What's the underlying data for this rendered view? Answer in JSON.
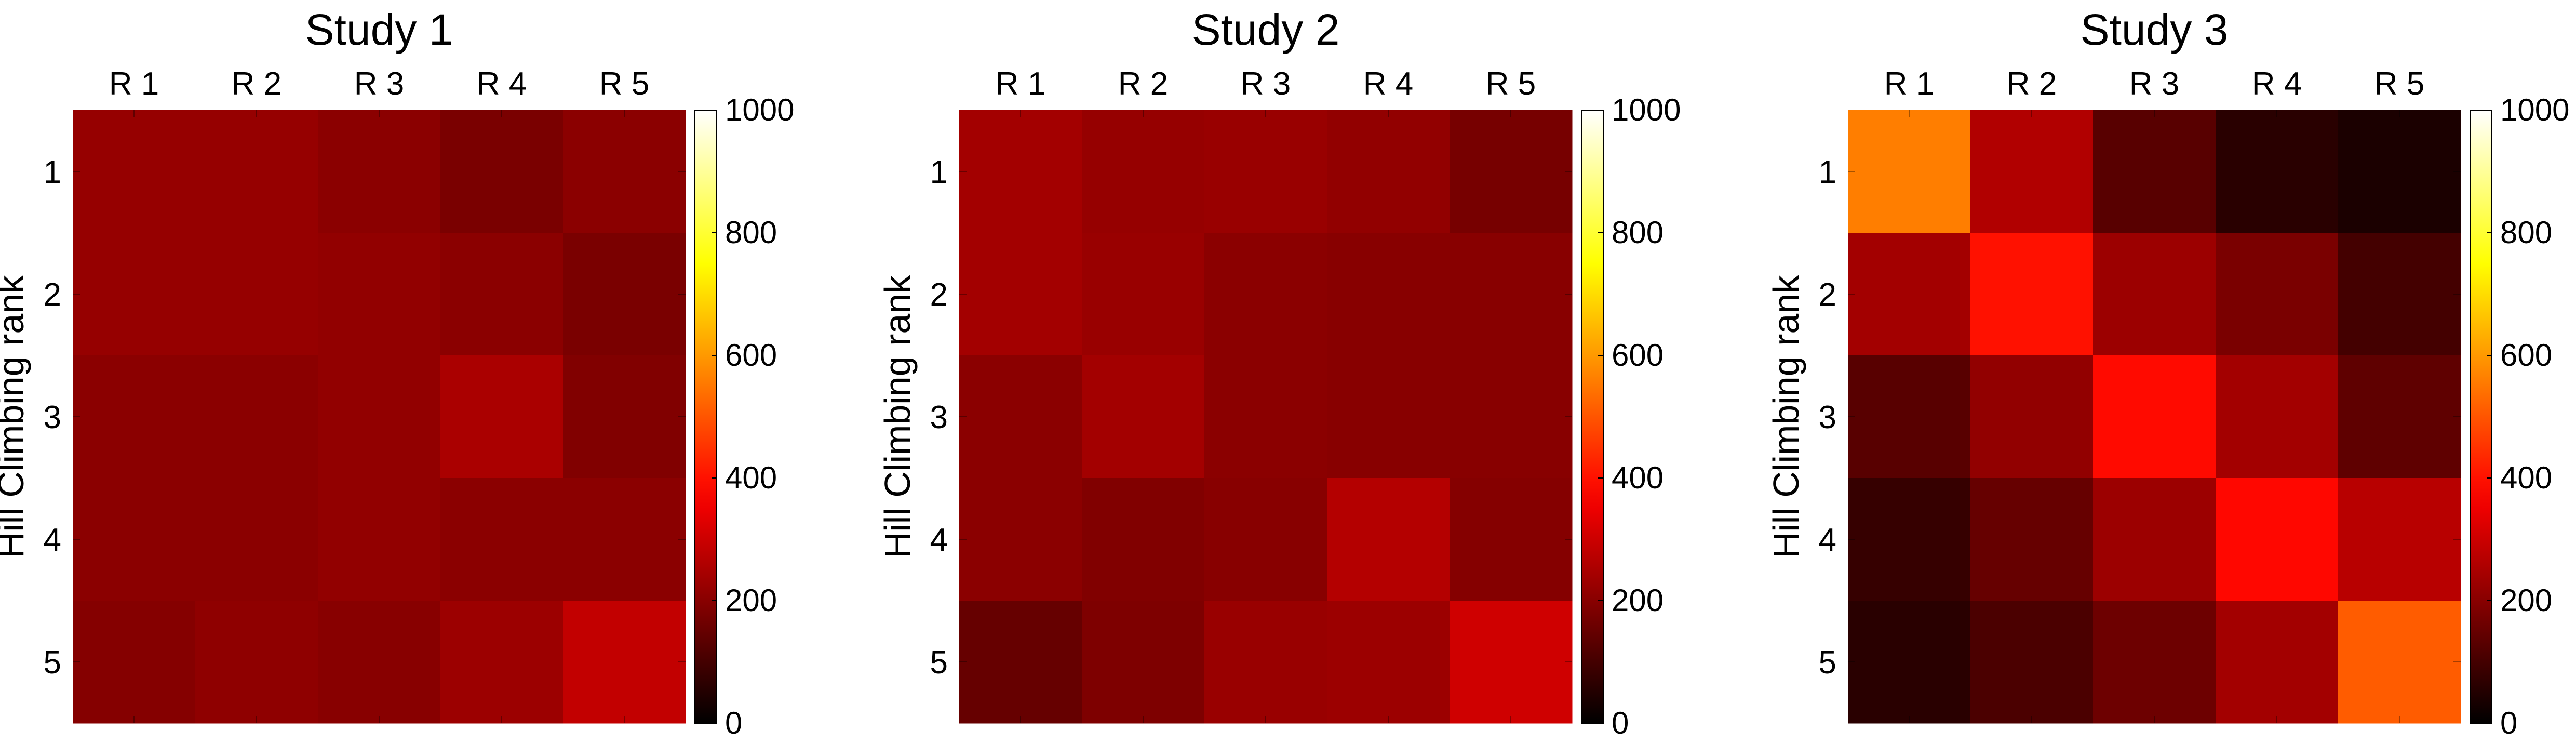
{
  "colormap": "hot",
  "colors": {
    "background": "#ffffff",
    "axis": "#000000"
  },
  "chart_data": [
    {
      "type": "heatmap",
      "title": "Study 1",
      "x_categories": [
        "R 1",
        "R 2",
        "R 3",
        "R 4",
        "R 5"
      ],
      "y_categories": [
        "1",
        "2",
        "3",
        "4",
        "5"
      ],
      "ylabel": "Hill Climbing rank",
      "xlabel": "",
      "colorbar": {
        "range": [
          0,
          1000
        ],
        "ticks": [
          "0",
          "200",
          "400",
          "600",
          "800",
          "1000"
        ]
      },
      "values": [
        [
          220,
          220,
          205,
          180,
          205
        ],
        [
          220,
          220,
          215,
          205,
          180
        ],
        [
          205,
          205,
          215,
          250,
          190
        ],
        [
          205,
          205,
          215,
          205,
          205
        ],
        [
          195,
          210,
          200,
          230,
          285
        ]
      ]
    },
    {
      "type": "heatmap",
      "title": "Study 2",
      "x_categories": [
        "R 1",
        "R 2",
        "R 3",
        "R 4",
        "R 5"
      ],
      "y_categories": [
        "1",
        "2",
        "3",
        "4",
        "5"
      ],
      "ylabel": "Hill Climbing rank",
      "xlabel": "",
      "colorbar": {
        "range": [
          0,
          1000
        ],
        "ticks": [
          "0",
          "200",
          "400",
          "600",
          "800",
          "1000"
        ]
      },
      "values": [
        [
          240,
          220,
          225,
          215,
          175
        ],
        [
          240,
          225,
          205,
          200,
          200
        ],
        [
          205,
          240,
          205,
          200,
          200
        ],
        [
          205,
          190,
          200,
          265,
          195
        ],
        [
          150,
          185,
          225,
          230,
          305
        ]
      ]
    },
    {
      "type": "heatmap",
      "title": "Study 3",
      "x_categories": [
        "R 1",
        "R 2",
        "R 3",
        "R 4",
        "R 5"
      ],
      "y_categories": [
        "1",
        "2",
        "3",
        "4",
        "5"
      ],
      "ylabel": "Hill Climbing rank",
      "xlabel": "",
      "colorbar": {
        "range": [
          0,
          1000
        ],
        "ticks": [
          "0",
          "200",
          "400",
          "600",
          "800",
          "1000"
        ]
      },
      "values": [
        [
          560,
          260,
          130,
          60,
          40
        ],
        [
          240,
          400,
          230,
          180,
          100
        ],
        [
          130,
          215,
          390,
          240,
          140
        ],
        [
          80,
          150,
          230,
          385,
          270
        ],
        [
          60,
          110,
          160,
          240,
          510
        ]
      ]
    }
  ]
}
